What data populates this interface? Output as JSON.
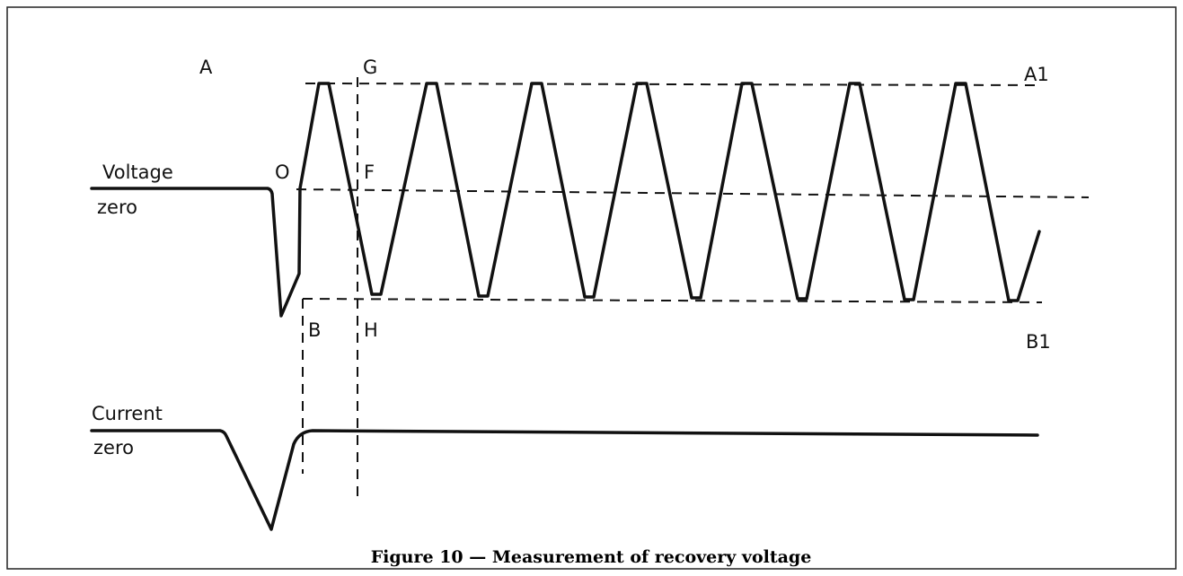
{
  "figure": {
    "labels": {
      "A": "A",
      "G": "G",
      "A1": "A1",
      "O": "O",
      "F": "F",
      "voltage": "Voltage",
      "voltage_zero": "zero",
      "B": "B",
      "H": "H",
      "B1": "B1",
      "current": "Current",
      "current_zero": "zero"
    },
    "caption": "Figure 10 — Measurement of recovery voltage"
  }
}
